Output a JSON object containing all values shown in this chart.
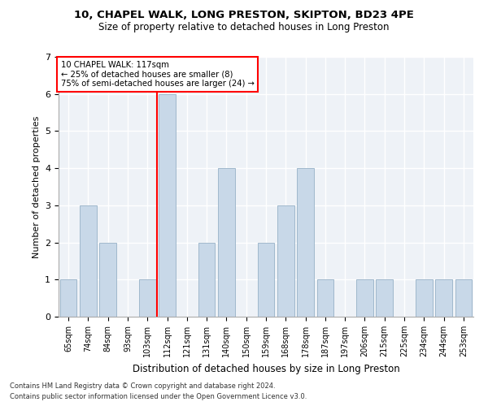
{
  "title_line1": "10, CHAPEL WALK, LONG PRESTON, SKIPTON, BD23 4PE",
  "title_line2": "Size of property relative to detached houses in Long Preston",
  "xlabel": "Distribution of detached houses by size in Long Preston",
  "ylabel": "Number of detached properties",
  "categories": [
    "65sqm",
    "74sqm",
    "84sqm",
    "93sqm",
    "103sqm",
    "112sqm",
    "121sqm",
    "131sqm",
    "140sqm",
    "150sqm",
    "159sqm",
    "168sqm",
    "178sqm",
    "187sqm",
    "197sqm",
    "206sqm",
    "215sqm",
    "225sqm",
    "234sqm",
    "244sqm",
    "253sqm"
  ],
  "values": [
    1,
    3,
    2,
    0,
    1,
    6,
    0,
    2,
    4,
    0,
    2,
    3,
    4,
    1,
    0,
    1,
    1,
    0,
    1,
    1,
    1
  ],
  "bar_color": "#c8d8e8",
  "bar_edge_color": "#a0b8cc",
  "vline_color": "red",
  "vline_x": 4.5,
  "annotation_line1": "10 CHAPEL WALK: 117sqm",
  "annotation_line2": "← 25% of detached houses are smaller (8)",
  "annotation_line3": "75% of semi-detached houses are larger (24) →",
  "annotation_box_color": "white",
  "annotation_box_edge_color": "red",
  "ylim": [
    0,
    7
  ],
  "yticks": [
    0,
    1,
    2,
    3,
    4,
    5,
    6,
    7
  ],
  "background_color": "#eef2f7",
  "grid_color": "white",
  "footnote1": "Contains HM Land Registry data © Crown copyright and database right 2024.",
  "footnote2": "Contains public sector information licensed under the Open Government Licence v3.0."
}
